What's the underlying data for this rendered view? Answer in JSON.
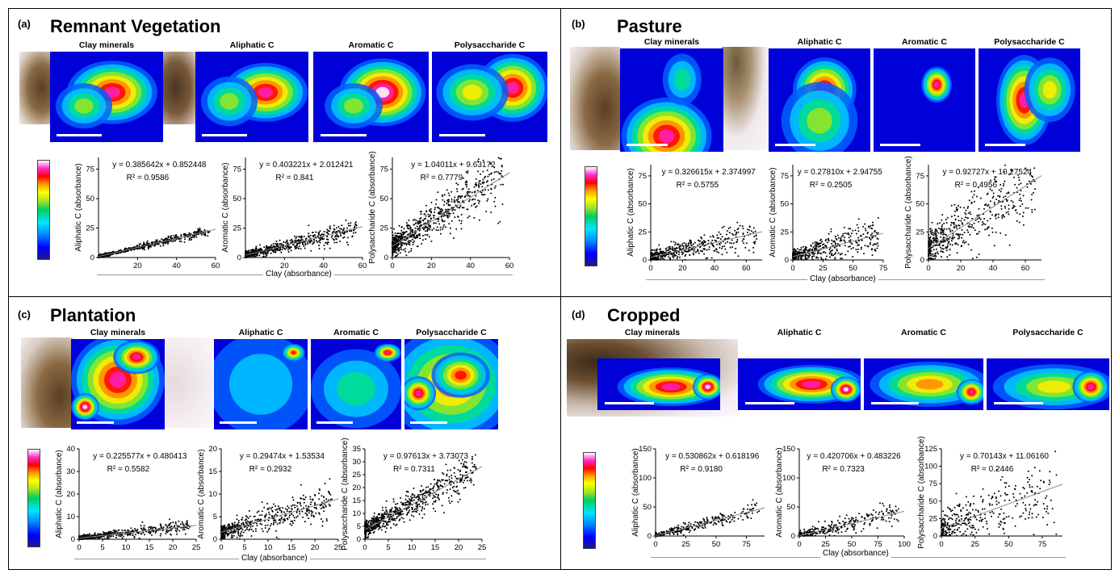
{
  "colors": {
    "scatter": "#000000",
    "fit_line": "#888888",
    "border": "#000000"
  },
  "shared": {
    "x_label": "Clay (absorbance)"
  },
  "panels": [
    {
      "label": "(a)",
      "title": "Remnant Vegetation",
      "maps": [
        "Clay minerals",
        "Aliphatic C",
        "Aromatic C",
        "Polysaccharide C"
      ]
    },
    {
      "label": "(b)",
      "title": "Pasture",
      "maps": [
        "Clay minerals",
        "Aliphatic C",
        "Aromatic C",
        "Polysaccharide C"
      ]
    },
    {
      "label": "(c)",
      "title": "Plantation",
      "maps": [
        "Clay minerals",
        "Aliphatic C",
        "Aromatic C",
        "Polysaccharide C"
      ]
    },
    {
      "label": "(d)",
      "title": "Cropped",
      "maps": [
        "Clay minerals",
        "Aliphatic C",
        "Aromatic C",
        "Polysaccharide C"
      ]
    }
  ],
  "chart_data": [
    {
      "panel": "(a)",
      "type": "scatter",
      "ylabel": "Aliphatic C (absorbance)",
      "xlabel": "Clay (absorbance)",
      "equation": "y = 0.385642x + 0.852448",
      "r2": "R² = 0.9586",
      "slope": 0.385642,
      "intercept": 0.852448,
      "xlim": [
        0,
        60
      ],
      "ylim": [
        0,
        85
      ],
      "xticks": [
        20,
        40,
        60
      ],
      "yticks": [
        0,
        25,
        50,
        75
      ],
      "spread": 1.2,
      "n": 600
    },
    {
      "panel": "(a)",
      "type": "scatter",
      "ylabel": "Aromatic C (absorbance)",
      "xlabel": "Clay (absorbance)",
      "equation": "y = 0.403221x + 2.012421",
      "r2": "R² = 0.841",
      "slope": 0.403221,
      "intercept": 2.012421,
      "xlim": [
        0,
        60
      ],
      "ylim": [
        0,
        85
      ],
      "xticks": [
        20,
        40,
        60
      ],
      "yticks": [
        0,
        25,
        50,
        75
      ],
      "spread": 3.0,
      "n": 600
    },
    {
      "panel": "(a)",
      "type": "scatter",
      "ylabel": "Polysaccharide C (absorbance)",
      "xlabel": "Clay (absorbance)",
      "equation": "y = 1.04011x + 9.63172",
      "r2": "R² = 0.7779",
      "slope": 1.04011,
      "intercept": 9.63172,
      "xlim": [
        0,
        60
      ],
      "ylim": [
        0,
        85
      ],
      "xticks": [
        0,
        20,
        40,
        60
      ],
      "yticks": [
        0,
        25,
        50,
        75
      ],
      "spread": 9.0,
      "n": 700
    },
    {
      "panel": "(b)",
      "type": "scatter",
      "ylabel": "Aliphatic C (absorbance)",
      "xlabel": "Clay (absorbance)",
      "equation": "y = 0.326615x + 2.374997",
      "r2": "R² = 0.5755",
      "slope": 0.326615,
      "intercept": 2.374997,
      "xlim": [
        0,
        70
      ],
      "ylim": [
        0,
        85
      ],
      "xticks": [
        0,
        20,
        40,
        60
      ],
      "yticks": [
        0,
        25,
        50,
        75
      ],
      "spread": 5.0,
      "n": 450
    },
    {
      "panel": "(b)",
      "type": "scatter",
      "ylabel": "Aromatic C (absorbance)",
      "xlabel": "Clay (absorbance)",
      "equation": "y = 0.27810x + 2.94755",
      "r2": "R² = 0.2505",
      "slope": 0.2781,
      "intercept": 2.94755,
      "xlim": [
        0,
        75
      ],
      "ylim": [
        0,
        85
      ],
      "xticks": [
        0,
        25,
        50,
        75
      ],
      "yticks": [
        0,
        25,
        50,
        75
      ],
      "spread": 6.0,
      "n": 400
    },
    {
      "panel": "(b)",
      "type": "scatter",
      "ylabel": "Polysaccharide C (absorbance)",
      "xlabel": "Clay (absorbance)",
      "equation": "y = 0.92727x + 10.27524",
      "r2": "R² = 0.4956",
      "slope": 0.92727,
      "intercept": 10.27524,
      "xlim": [
        0,
        70
      ],
      "ylim": [
        0,
        85
      ],
      "xticks": [
        0,
        20,
        40,
        60
      ],
      "yticks": [
        0,
        25,
        50,
        75
      ],
      "spread": 14.0,
      "n": 500
    },
    {
      "panel": "(c)",
      "type": "scatter",
      "ylabel": "Aliphatic C (absorbance)",
      "xlabel": "Clay (absorbance)",
      "equation": "y = 0.225577x + 0.480413",
      "r2": "R² = 0.5582",
      "slope": 0.225577,
      "intercept": 0.480413,
      "xlim": [
        0,
        25
      ],
      "ylim": [
        0,
        40
      ],
      "xticks": [
        0,
        5,
        10,
        15,
        20,
        25
      ],
      "yticks": [
        0,
        10,
        20,
        30,
        40
      ],
      "spread": 1.0,
      "n": 450
    },
    {
      "panel": "(c)",
      "type": "scatter",
      "ylabel": "Aromatic C (absorbance)",
      "xlabel": "Clay (absorbance)",
      "equation": "y = 0.29474x + 1.53534",
      "r2": "R² = 0.2932",
      "slope": 0.29474,
      "intercept": 1.53534,
      "xlim": [
        0,
        25
      ],
      "ylim": [
        0,
        20
      ],
      "xticks": [
        0,
        5,
        10,
        15,
        20,
        25
      ],
      "yticks": [
        0,
        5,
        10,
        15,
        20
      ],
      "spread": 1.5,
      "n": 500
    },
    {
      "panel": "(c)",
      "type": "scatter",
      "ylabel": "Polysaccharide C (absorbance)",
      "xlabel": "Clay (absorbance)",
      "equation": "y = 0.97613x + 3.73073",
      "r2": "R² = 0.7311",
      "slope": 0.97613,
      "intercept": 3.73073,
      "xlim": [
        0,
        25
      ],
      "ylim": [
        0,
        35
      ],
      "xticks": [
        0,
        5,
        10,
        15,
        20,
        25
      ],
      "yticks": [
        0,
        5,
        10,
        15,
        20,
        25,
        30,
        35
      ],
      "spread": 2.8,
      "n": 700
    },
    {
      "panel": "(d)",
      "type": "scatter",
      "ylabel": "Aliphatic C (absorbance)",
      "xlabel": "Clay (absorbance)",
      "equation": "y = 0.530862x + 0.618196",
      "r2": "R² = 0.9180",
      "slope": 0.530862,
      "intercept": 0.618196,
      "xlim": [
        0,
        90
      ],
      "ylim": [
        0,
        150
      ],
      "xticks": [
        0,
        25,
        50,
        75
      ],
      "yticks": [
        0,
        50,
        100,
        150
      ],
      "spread": 5.0,
      "n": 300
    },
    {
      "panel": "(d)",
      "type": "scatter",
      "ylabel": "Aromatic C (absorbance)",
      "xlabel": "Clay (absorbance)",
      "equation": "y = 0.420706x + 0.483226",
      "r2": "R² = 0.7323",
      "slope": 0.420706,
      "intercept": 0.483226,
      "xlim": [
        0,
        100
      ],
      "ylim": [
        0,
        150
      ],
      "xticks": [
        0,
        25,
        50,
        75,
        100
      ],
      "yticks": [
        0,
        50,
        100,
        150
      ],
      "spread": 7.0,
      "n": 300
    },
    {
      "panel": "(d)",
      "type": "scatter",
      "ylabel": "Polysaccharide C (absorbance)",
      "xlabel": "Clay (absorbance)",
      "equation": "y = 0.70143x + 11.06160",
      "r2": "R² = 0.2446",
      "slope": 0.70143,
      "intercept": 11.0616,
      "xlim": [
        0,
        90
      ],
      "ylim": [
        0,
        125
      ],
      "xticks": [
        0,
        25,
        50,
        75
      ],
      "yticks": [
        0,
        25,
        50,
        75,
        100,
        125
      ],
      "spread": 22.0,
      "n": 350
    }
  ]
}
